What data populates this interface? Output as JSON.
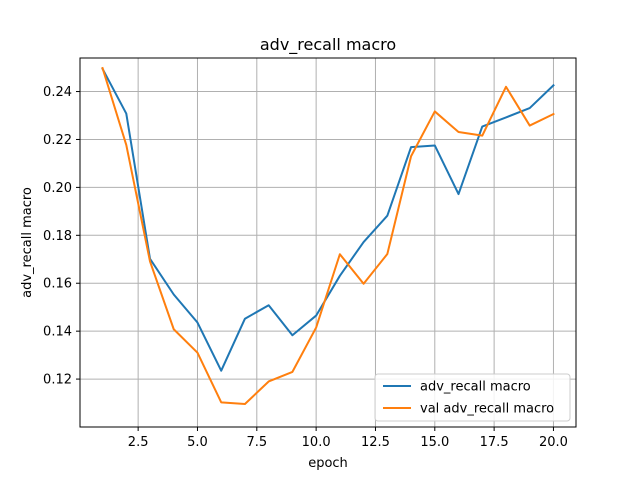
{
  "chart_data": {
    "type": "line",
    "title": "adv_recall macro",
    "xlabel": "epoch",
    "ylabel": "adv_recall macro",
    "xlim": [
      0.05,
      20.95
    ],
    "ylim": [
      0.1,
      0.254
    ],
    "grid": true,
    "legend_position": "lower-right",
    "x_ticks": [
      2.5,
      5.0,
      7.5,
      10.0,
      12.5,
      15.0,
      17.5,
      20.0
    ],
    "x_tick_labels": [
      "2.5",
      "5.0",
      "7.5",
      "10.0",
      "12.5",
      "15.0",
      "17.5",
      "20.0"
    ],
    "y_ticks": [
      0.12,
      0.14,
      0.16,
      0.18,
      0.2,
      0.22,
      0.24
    ],
    "y_tick_labels": [
      "0.12",
      "0.14",
      "0.16",
      "0.18",
      "0.20",
      "0.22",
      "0.24"
    ],
    "x": [
      1,
      2,
      3,
      4,
      5,
      6,
      7,
      8,
      9,
      10,
      11,
      12,
      13,
      14,
      15,
      16,
      17,
      18,
      19,
      20
    ],
    "series": [
      {
        "name": "adv_recall macro",
        "color": "#1f77b4",
        "values": [
          0.2495,
          0.2308,
          0.1702,
          0.1553,
          0.1436,
          0.1235,
          0.1452,
          0.1508,
          0.1383,
          0.1465,
          0.1631,
          0.1772,
          0.1882,
          0.2168,
          0.2175,
          0.1972,
          0.2254,
          0.2292,
          0.2331,
          0.2426
        ]
      },
      {
        "name": "val adv_recall macro",
        "color": "#ff7f0e",
        "values": [
          0.2498,
          0.2177,
          0.1691,
          0.1408,
          0.131,
          0.1103,
          0.1096,
          0.119,
          0.123,
          0.1415,
          0.1721,
          0.1598,
          0.1722,
          0.213,
          0.2317,
          0.2231,
          0.2216,
          0.242,
          0.2258,
          0.2306
        ]
      }
    ]
  }
}
